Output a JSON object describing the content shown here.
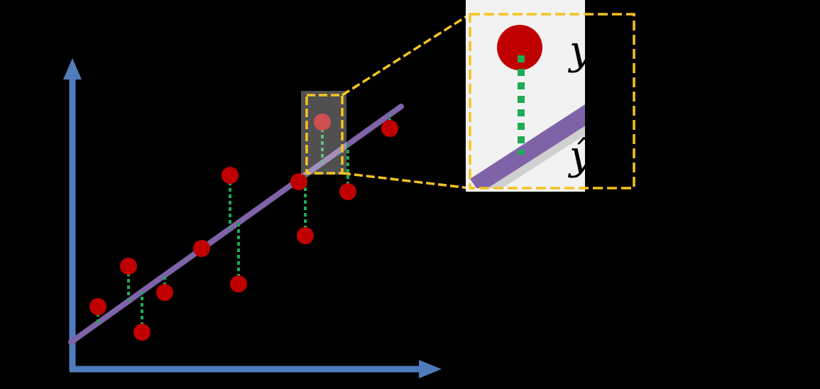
{
  "diagram": {
    "kind": "linear-regression-residuals",
    "colors": {
      "background": "#000000",
      "axis": "#4f7cba",
      "regression_line": "#7f63a8",
      "data_point": "#c00000",
      "residual": "#1faa55",
      "highlight": "#f5c320",
      "zoom_background": "#f2f2f2"
    },
    "zoom_labels": {
      "observed": "y",
      "predicted": "ŷ"
    },
    "point_count": 14
  }
}
